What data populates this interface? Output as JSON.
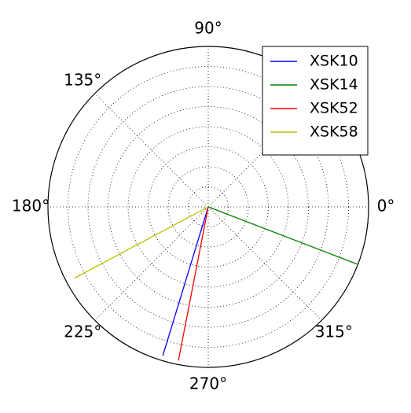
{
  "chart_data": {
    "type": "line",
    "subtype": "polar",
    "title": "",
    "angle_unit": "degrees",
    "theta_tick_labels": [
      {
        "angle": 0,
        "label": "0°"
      },
      {
        "angle": 90,
        "label": "90°"
      },
      {
        "angle": 135,
        "label": "135°"
      },
      {
        "angle": 180,
        "label": "180°"
      },
      {
        "angle": 225,
        "label": "225°"
      },
      {
        "angle": 270,
        "label": "270°"
      },
      {
        "angle": 315,
        "label": "315°"
      }
    ],
    "theta_grid_angles": [
      0,
      45,
      90,
      135,
      180,
      225,
      270,
      315
    ],
    "r_grid_count": 7,
    "rlim": [
      0,
      1
    ],
    "grid": true,
    "legend_position": "top-right",
    "series": [
      {
        "name": "XSK10",
        "color": "#0000ff",
        "theta": [
          0,
          253
        ],
        "r": [
          0,
          0.97
        ]
      },
      {
        "name": "XSK14",
        "color": "#008000",
        "theta": [
          0,
          339
        ],
        "r": [
          0,
          0.995
        ]
      },
      {
        "name": "XSK52",
        "color": "#ff0000",
        "theta": [
          0,
          259
        ],
        "r": [
          0,
          0.975
        ]
      },
      {
        "name": "XSK58",
        "color": "#bfbf00",
        "theta": [
          0,
          208
        ],
        "r": [
          0,
          0.945
        ]
      }
    ]
  }
}
